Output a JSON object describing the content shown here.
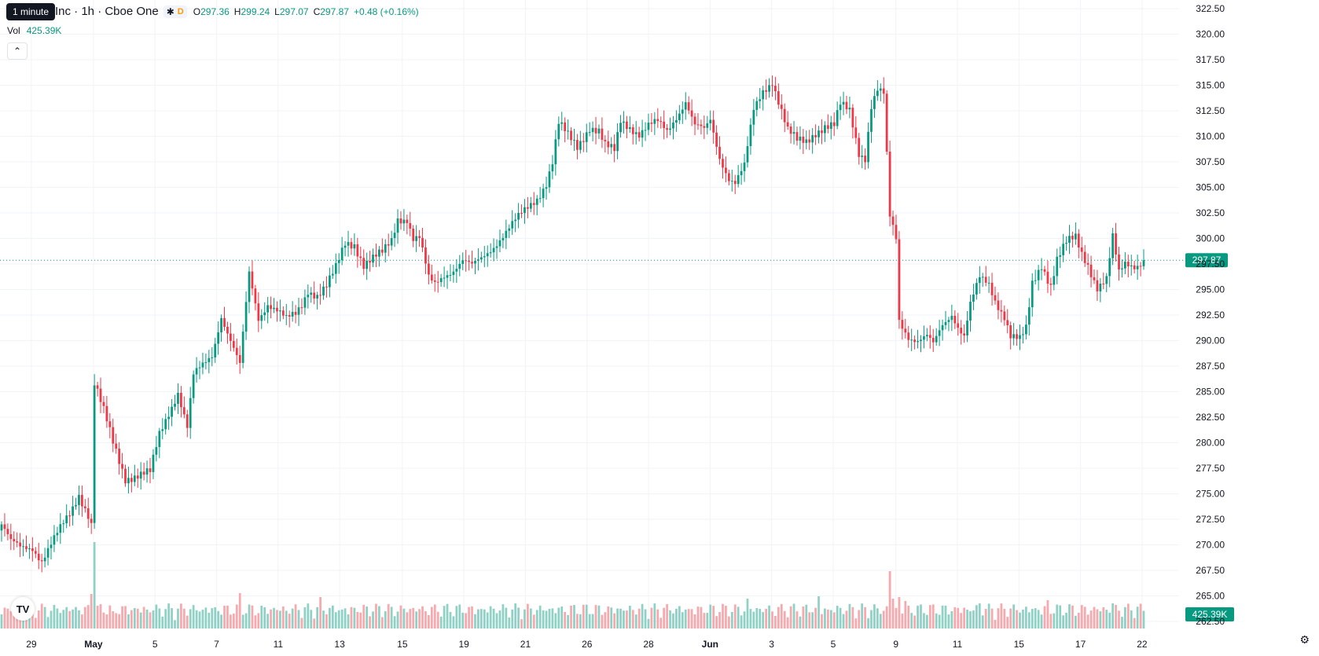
{
  "header": {
    "tooltip": "1 minute",
    "title": "Inc · 1h · Cboe One",
    "open_label": "O",
    "open": "297.36",
    "high_label": "H",
    "high": "299.24",
    "low_label": "L",
    "low": "297.07",
    "close_label": "C",
    "close": "297.87",
    "change": "+0.48 (+0.16%)",
    "session_badge": "D"
  },
  "volume_legend": {
    "label": "Vol",
    "value": "425.39K"
  },
  "colors": {
    "up": "#089981",
    "down": "#f23645",
    "up_vol": "#90d1c6",
    "down_vol": "#f7a9ad",
    "grid": "#f0f3fa"
  },
  "icons": {
    "logo": "tradingview-logo-icon",
    "settings": "gear-icon",
    "collapse": "chevron-up-icon"
  },
  "chart_data": {
    "type": "candlestick",
    "title": "Inc · 1h · Cboe One",
    "xlabel": "",
    "ylabel": "",
    "ylim": [
      261.8,
      323.2
    ],
    "y_ticks": [
      "322.50",
      "320.00",
      "317.50",
      "315.00",
      "312.50",
      "310.00",
      "307.50",
      "305.00",
      "302.50",
      "300.00",
      "297.50",
      "295.00",
      "292.50",
      "290.00",
      "287.50",
      "285.00",
      "282.50",
      "280.00",
      "277.50",
      "275.00",
      "272.50",
      "270.00",
      "267.50",
      "265.00",
      "262.50"
    ],
    "x_ticks": [
      "29",
      "May",
      "5",
      "7",
      "11",
      "13",
      "15",
      "19",
      "21",
      "26",
      "28",
      "Jun",
      "3",
      "5",
      "9",
      "11",
      "15",
      "17",
      "22"
    ],
    "last_price": "297.87",
    "last_volume": "425.39K",
    "anchors": [
      [
        0,
        272
      ],
      [
        3,
        270.2
      ],
      [
        6,
        269.7
      ],
      [
        10,
        269.8
      ],
      [
        13,
        268.5
      ],
      [
        16,
        270
      ],
      [
        19,
        271.5
      ],
      [
        22,
        273
      ],
      [
        25,
        275
      ],
      [
        28,
        273
      ],
      [
        29,
        272
      ],
      [
        30,
        285.8
      ],
      [
        33,
        283
      ],
      [
        36,
        280
      ],
      [
        40,
        276.6
      ],
      [
        44,
        276.8
      ],
      [
        48,
        277
      ],
      [
        51,
        280.8
      ],
      [
        54,
        283
      ],
      [
        57,
        285
      ],
      [
        60,
        281.5
      ],
      [
        62,
        286.5
      ],
      [
        65,
        287.5
      ],
      [
        68,
        288.6
      ],
      [
        71,
        292.5
      ],
      [
        74,
        290
      ],
      [
        77,
        287.5
      ],
      [
        78,
        290.5
      ],
      [
        80,
        296.5
      ],
      [
        83,
        292.2
      ],
      [
        86,
        293.7
      ],
      [
        89,
        293
      ],
      [
        92,
        292
      ],
      [
        95,
        292.5
      ],
      [
        97,
        293.5
      ],
      [
        99,
        295
      ],
      [
        102,
        294.5
      ],
      [
        105,
        295.3
      ],
      [
        108,
        297
      ],
      [
        111,
        299.5
      ],
      [
        114,
        299.5
      ],
      [
        117,
        297.5
      ],
      [
        120,
        298
      ],
      [
        123,
        298.5
      ],
      [
        126,
        299.8
      ],
      [
        128,
        302
      ],
      [
        131,
        302
      ],
      [
        133,
        300
      ],
      [
        135,
        300
      ],
      [
        138,
        296
      ],
      [
        140,
        295.5
      ],
      [
        143,
        296.5
      ],
      [
        146,
        297
      ],
      [
        149,
        297.8
      ],
      [
        152,
        297.2
      ],
      [
        155,
        298
      ],
      [
        158,
        299
      ],
      [
        161,
        300
      ],
      [
        164,
        301
      ],
      [
        167,
        302
      ],
      [
        170,
        303
      ],
      [
        173,
        304
      ],
      [
        176,
        305.5
      ],
      [
        178,
        307.5
      ],
      [
        180,
        311.2
      ],
      [
        183,
        310
      ],
      [
        186,
        309
      ],
      [
        190,
        311
      ],
      [
        193,
        310.5
      ],
      [
        195,
        309
      ],
      [
        198,
        308.5
      ],
      [
        200,
        311.5
      ],
      [
        203,
        311
      ],
      [
        206,
        310.3
      ],
      [
        209,
        311
      ],
      [
        212,
        311.3
      ],
      [
        215,
        310.5
      ],
      [
        218,
        312
      ],
      [
        221,
        313.5
      ],
      [
        224,
        311
      ],
      [
        227,
        310.5
      ],
      [
        229,
        311.5
      ],
      [
        232,
        308
      ],
      [
        235,
        306
      ],
      [
        237,
        305.5
      ],
      [
        240,
        307
      ],
      [
        243,
        312.5
      ],
      [
        246,
        314.5
      ],
      [
        249,
        315.5
      ],
      [
        251,
        313.5
      ],
      [
        254,
        310.5
      ],
      [
        257,
        309.5
      ],
      [
        260,
        309.5
      ],
      [
        263,
        310.5
      ],
      [
        266,
        311
      ],
      [
        269,
        311
      ],
      [
        271,
        313
      ],
      [
        274,
        312.5
      ],
      [
        277,
        308.5
      ],
      [
        279,
        308
      ],
      [
        281,
        313
      ],
      [
        283,
        314.5
      ],
      [
        285,
        314
      ],
      [
        287,
        302
      ],
      [
        289,
        300
      ],
      [
        290,
        292
      ],
      [
        293,
        290.5
      ],
      [
        296,
        290
      ],
      [
        299,
        290.3
      ],
      [
        301,
        289.5
      ],
      [
        304,
        291.5
      ],
      [
        307,
        292.7
      ],
      [
        309,
        291.5
      ],
      [
        311,
        290.5
      ],
      [
        313,
        293.5
      ],
      [
        316,
        296
      ],
      [
        319,
        295.5
      ],
      [
        321,
        294
      ],
      [
        324,
        292.5
      ],
      [
        326,
        290.5
      ],
      [
        329,
        290
      ],
      [
        331,
        291
      ],
      [
        333,
        295.5
      ],
      [
        336,
        297.5
      ],
      [
        339,
        295.5
      ],
      [
        341,
        298
      ],
      [
        344,
        299.5
      ],
      [
        347,
        300
      ],
      [
        349,
        298.5
      ],
      [
        351,
        297.5
      ],
      [
        354,
        295.3
      ],
      [
        357,
        296
      ],
      [
        359,
        300
      ],
      [
        361,
        296.5
      ],
      [
        363,
        297.5
      ],
      [
        366,
        297.4
      ],
      [
        369,
        297.87
      ]
    ],
    "volume_spikes": [
      [
        29,
        44
      ],
      [
        30,
        110
      ],
      [
        34,
        18
      ],
      [
        36,
        22
      ],
      [
        77,
        45
      ],
      [
        103,
        40
      ],
      [
        241,
        38
      ],
      [
        264,
        41
      ],
      [
        287,
        73
      ],
      [
        290,
        40
      ],
      [
        288,
        38
      ],
      [
        292,
        35
      ],
      [
        316,
        32
      ],
      [
        338,
        36
      ],
      [
        359,
        32
      ]
    ]
  }
}
